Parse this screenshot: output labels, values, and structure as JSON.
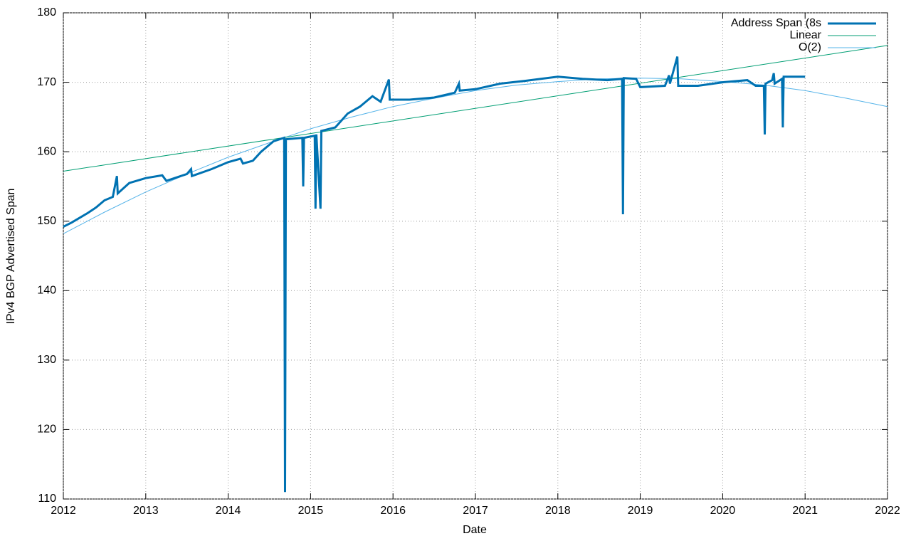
{
  "chart_data": {
    "type": "line",
    "x_label": "Date",
    "y_label": "IPv4 BGP Advertised Span",
    "xlim": [
      2012,
      2022
    ],
    "xticks": [
      2012,
      2013,
      2014,
      2015,
      2016,
      2017,
      2018,
      2019,
      2020,
      2021,
      2022
    ],
    "ylim": [
      110,
      180
    ],
    "yticks": [
      110,
      120,
      130,
      140,
      150,
      160,
      170,
      180
    ],
    "grid": true,
    "legend": "top-right",
    "series": [
      {
        "name": "Address Span (8s",
        "color": "#0072b2",
        "width": 3,
        "x": [
          2012.0,
          2012.1,
          2012.2,
          2012.3,
          2012.4,
          2012.5,
          2012.6,
          2012.65,
          2012.66,
          2012.8,
          2013.0,
          2013.2,
          2013.25,
          2013.5,
          2013.55,
          2013.56,
          2013.8,
          2014.0,
          2014.15,
          2014.18,
          2014.3,
          2014.4,
          2014.55,
          2014.68,
          2014.69,
          2014.7,
          2014.9,
          2014.91,
          2014.92,
          2015.05,
          2015.06,
          2015.07,
          2015.12,
          2015.13,
          2015.3,
          2015.45,
          2015.6,
          2015.75,
          2015.85,
          2015.95,
          2015.96,
          2016.2,
          2016.5,
          2016.75,
          2016.8,
          2016.81,
          2017.0,
          2017.3,
          2017.6,
          2018.0,
          2018.3,
          2018.6,
          2018.78,
          2018.79,
          2018.8,
          2018.95,
          2019.0,
          2019.3,
          2019.35,
          2019.36,
          2019.45,
          2019.46,
          2019.7,
          2020.0,
          2020.3,
          2020.4,
          2020.5,
          2020.51,
          2020.52,
          2020.6,
          2020.62,
          2020.63,
          2020.72,
          2020.73,
          2020.74,
          2021.0
        ],
        "values": [
          149.2,
          149.8,
          150.5,
          151.2,
          152.0,
          153.0,
          153.5,
          156.5,
          154.0,
          155.5,
          156.2,
          156.6,
          155.8,
          156.8,
          157.5,
          156.5,
          157.5,
          158.5,
          159.0,
          158.3,
          158.7,
          160.0,
          161.5,
          162.0,
          111.0,
          161.8,
          162.0,
          155.0,
          162.0,
          162.3,
          151.8,
          162.5,
          151.8,
          163.0,
          163.5,
          165.5,
          166.5,
          168.0,
          167.2,
          170.4,
          167.5,
          167.5,
          167.8,
          168.5,
          169.8,
          168.8,
          169.0,
          169.8,
          170.2,
          170.8,
          170.5,
          170.3,
          170.5,
          151.0,
          170.6,
          170.5,
          169.3,
          169.5,
          171.0,
          169.8,
          173.7,
          169.5,
          169.5,
          170.0,
          170.3,
          169.5,
          169.5,
          162.5,
          169.8,
          170.3,
          171.3,
          169.8,
          170.5,
          163.5,
          170.8,
          170.8
        ]
      },
      {
        "name": "Linear",
        "color": "#009e73",
        "width": 1,
        "x": [
          2012,
          2022
        ],
        "values": [
          157.2,
          175.3
        ]
      },
      {
        "name": "O(2)",
        "color": "#56b4e9",
        "width": 1,
        "x": [
          2012,
          2012.5,
          2013,
          2013.5,
          2014,
          2014.5,
          2015,
          2015.5,
          2016,
          2016.5,
          2017,
          2017.5,
          2018,
          2018.5,
          2019,
          2019.5,
          2020,
          2020.5,
          2021,
          2021.5,
          2022
        ],
        "values": [
          148.2,
          151.3,
          154.2,
          156.8,
          159.2,
          161.3,
          163.3,
          165.0,
          166.5,
          167.7,
          168.8,
          169.6,
          170.1,
          170.5,
          170.6,
          170.5,
          170.1,
          169.6,
          168.8,
          167.7,
          166.5
        ]
      }
    ]
  }
}
